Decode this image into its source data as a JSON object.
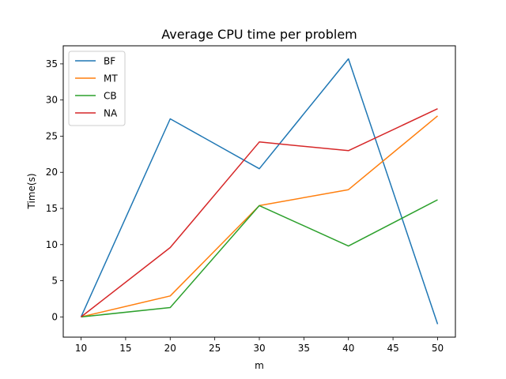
{
  "chart_data": {
    "type": "line",
    "title": "Average CPU time per problem",
    "xlabel": "m",
    "ylabel": "Time(s)",
    "x": [
      10,
      20,
      30,
      40,
      50
    ],
    "xlim": [
      8,
      52
    ],
    "ylim": [
      -2.8,
      37.5
    ],
    "xticks": [
      10,
      15,
      20,
      25,
      30,
      35,
      40,
      45,
      50
    ],
    "yticks": [
      0,
      5,
      10,
      15,
      20,
      25,
      30,
      35
    ],
    "grid": false,
    "legend_position": "top-left",
    "series": [
      {
        "name": "BF",
        "color": "#1f77b4",
        "values": [
          0.0,
          27.4,
          20.5,
          35.7,
          -1.0
        ]
      },
      {
        "name": "MT",
        "color": "#ff7f0e",
        "values": [
          0.0,
          2.9,
          15.4,
          17.6,
          27.8
        ]
      },
      {
        "name": "CB",
        "color": "#2ca02c",
        "values": [
          0.0,
          1.3,
          15.4,
          9.8,
          16.2
        ]
      },
      {
        "name": "NA",
        "color": "#d62728",
        "values": [
          0.0,
          9.6,
          24.2,
          23.0,
          28.8
        ]
      }
    ]
  }
}
